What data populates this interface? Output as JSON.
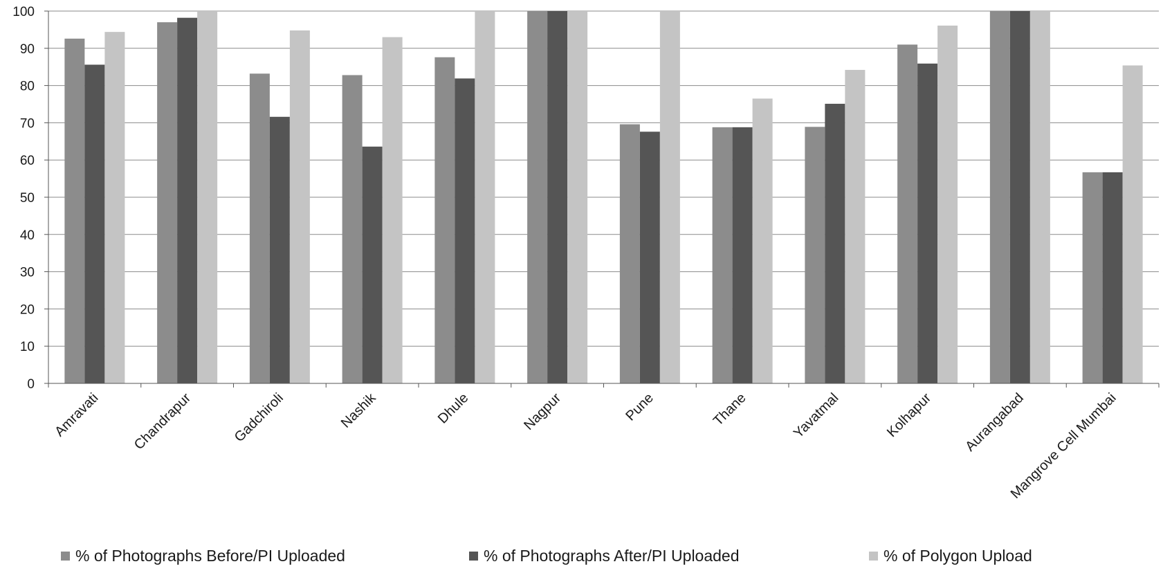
{
  "chart_data": {
    "type": "bar",
    "title": "",
    "xlabel": "",
    "ylabel": "",
    "ylim": [
      0,
      100
    ],
    "yticks": [
      "0",
      "10",
      "20",
      "30",
      "40",
      "50",
      "60",
      "70",
      "80",
      "90",
      "100"
    ],
    "grid": true,
    "legend_position": "bottom",
    "categories": [
      "Amravati",
      "Chandrapur",
      "Gadchiroli",
      "Nashik",
      "Dhule",
      "Nagpur",
      "Pune",
      "Thane",
      "Yavatmal",
      "Kolhapur",
      "Aurangabad",
      "Mangrove Cell Mumbai"
    ],
    "series": [
      {
        "name": "% of Photographs Before/PI  Uploaded",
        "color": "#8c8c8c",
        "values": [
          92.6,
          97,
          83.2,
          82.8,
          87.6,
          100,
          69.6,
          68.8,
          68.9,
          91,
          100,
          56.7
        ]
      },
      {
        "name": "% of Photographs  After/PI  Uploaded",
        "color": "#555555",
        "values": [
          85.6,
          98.2,
          71.6,
          63.6,
          81.9,
          100,
          67.6,
          68.8,
          75.1,
          85.9,
          100,
          56.7
        ]
      },
      {
        "name": "% of Polygon Upload",
        "color": "#c4c4c4",
        "values": [
          94.4,
          100,
          94.8,
          93,
          100,
          100,
          100,
          76.5,
          84.2,
          96.1,
          100,
          85.4
        ]
      }
    ]
  }
}
